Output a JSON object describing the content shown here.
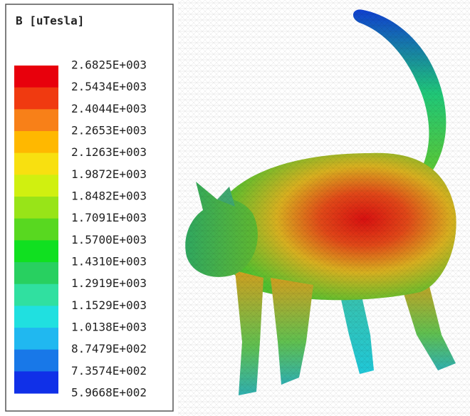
{
  "legend": {
    "title": "B [uTesla]",
    "labels": [
      "2.6825E+003",
      "2.5434E+003",
      "2.4044E+003",
      "2.2653E+003",
      "2.1263E+003",
      "1.9872E+003",
      "1.8482E+003",
      "1.7091E+003",
      "1.5700E+003",
      "1.4310E+003",
      "1.2919E+003",
      "1.1529E+003",
      "1.0138E+003",
      "8.7479E+002",
      "7.3574E+002",
      "5.9668E+002"
    ],
    "colors": [
      "#e8000c",
      "#f03a10",
      "#f88018",
      "#ffb800",
      "#f8e010",
      "#d0f010",
      "#98e418",
      "#58d820",
      "#10e020",
      "#28d060",
      "#30e0a0",
      "#20e0e0",
      "#20b8f0",
      "#1878e8",
      "#1030e8"
    ]
  }
}
